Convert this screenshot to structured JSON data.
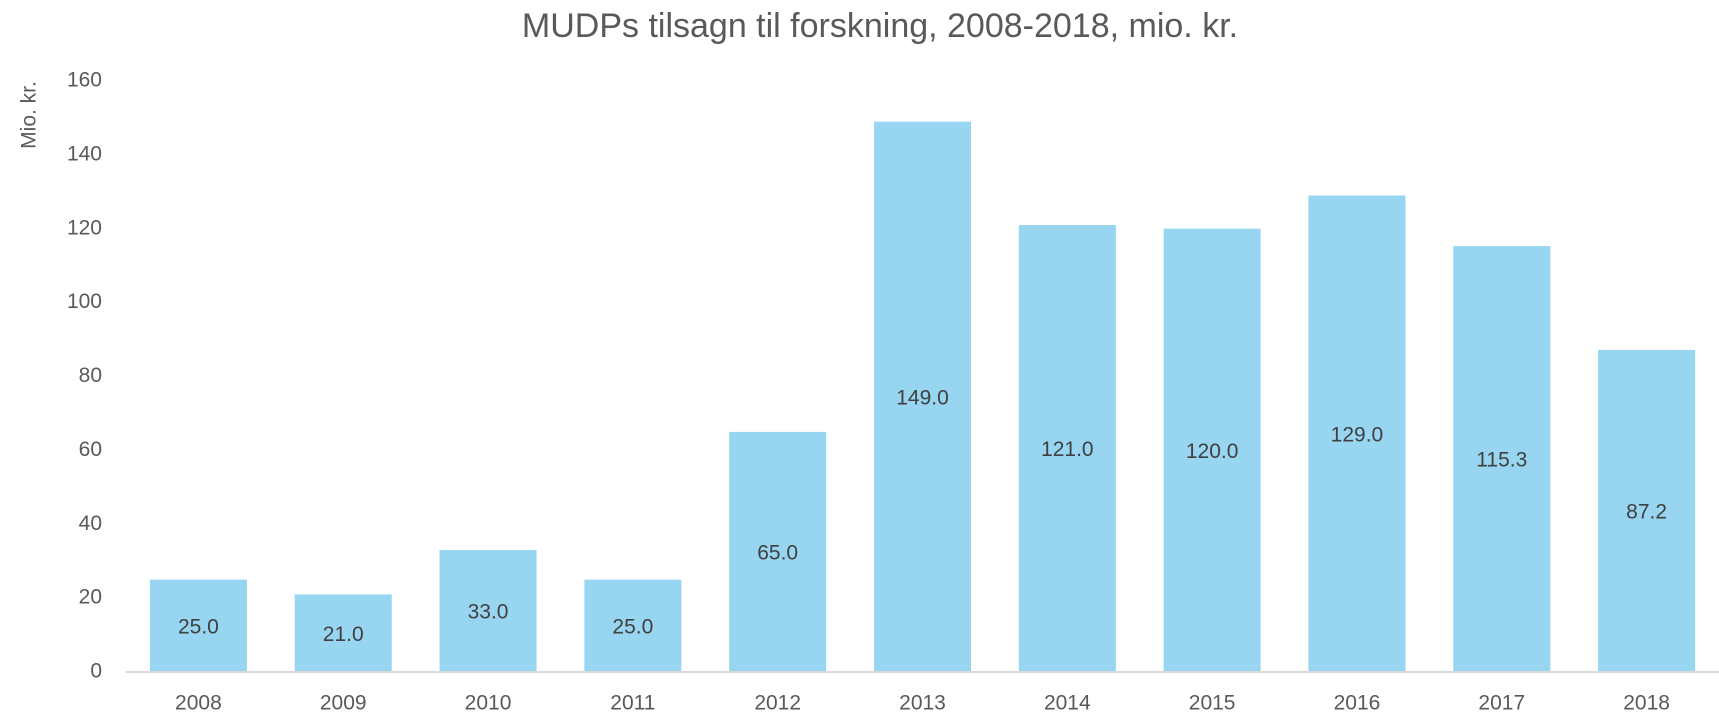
{
  "chart_data": {
    "type": "bar",
    "title": "MUDPs tilsagn til forskning, 2008-2018, mio. kr.",
    "y_label": "Mio. kr.",
    "categories": [
      "2008",
      "2009",
      "2010",
      "2011",
      "2012",
      "2013",
      "2014",
      "2015",
      "2016",
      "2017",
      "2018"
    ],
    "values": [
      25,
      21,
      33,
      25,
      65,
      149,
      121,
      120,
      129,
      115.3,
      87.2
    ],
    "value_labels": [
      "25.0",
      "21.0",
      "33.0",
      "25.0",
      "65.0",
      "149.0",
      "121.0",
      "120.0",
      "129.0",
      "115.3",
      "87.2"
    ],
    "color": "#97d5f0",
    "ylim": [
      0,
      160
    ],
    "yticks": [
      0,
      20,
      40,
      60,
      80,
      100,
      120,
      140,
      160
    ],
    "grid": false
  }
}
